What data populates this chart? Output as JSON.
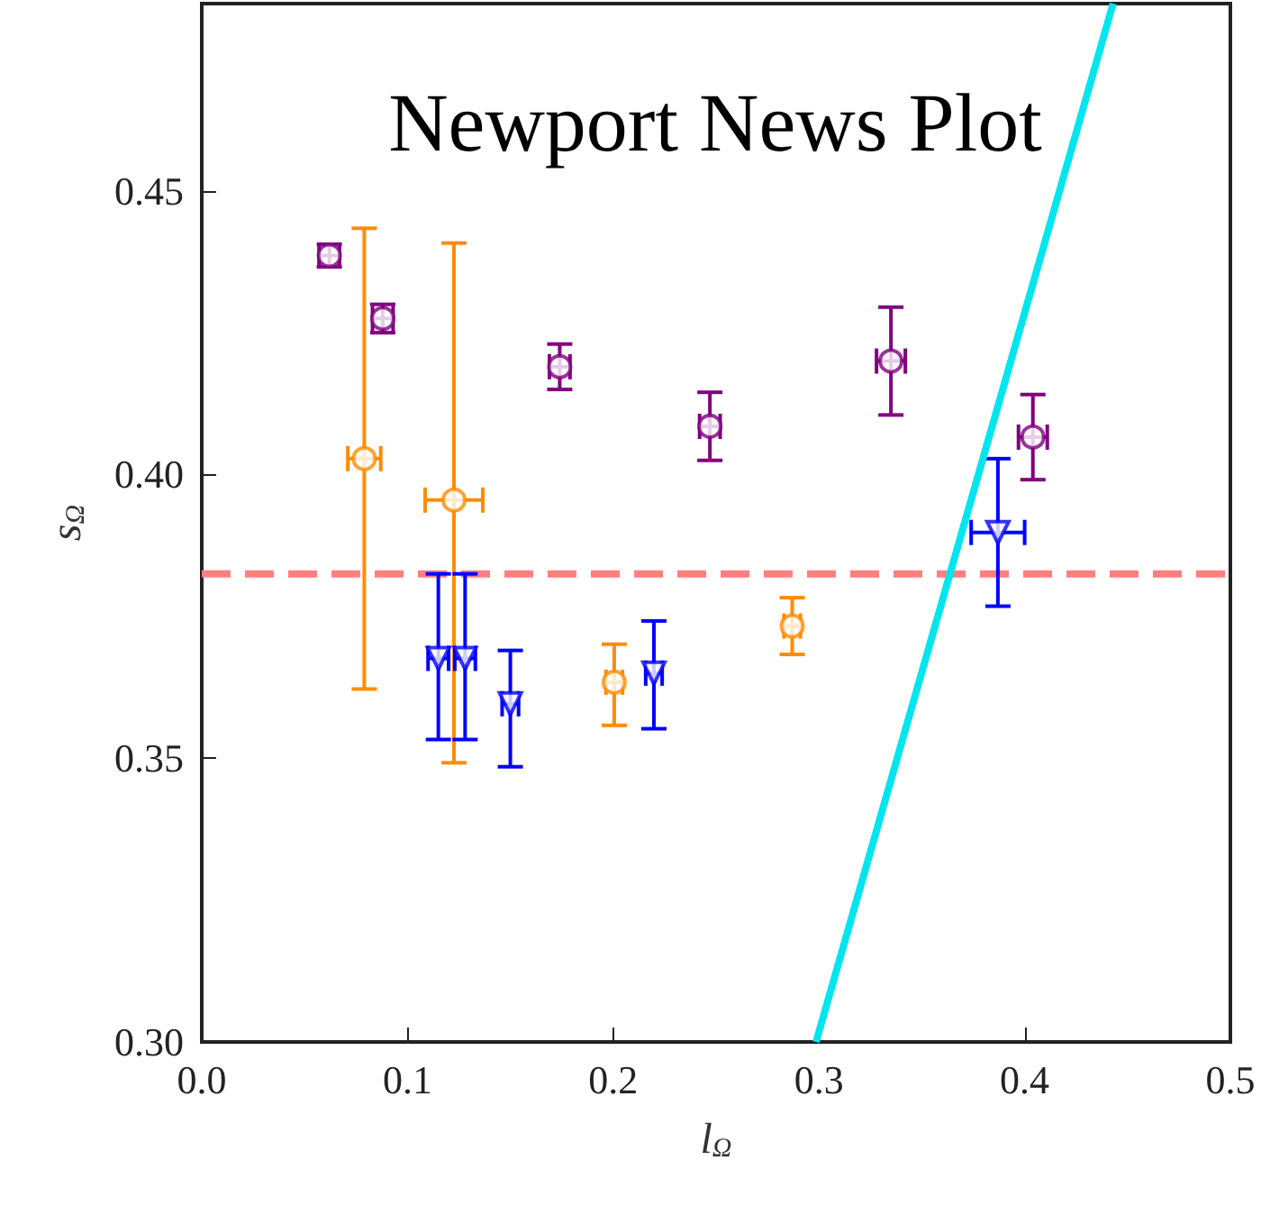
{
  "chart_data": {
    "type": "scatter",
    "title": "Newport News Plot",
    "xlabel": "l$_{Ω}$",
    "ylabel": "s$_{Ω}$",
    "xlim": [
      0,
      0.5
    ],
    "ylim": [
      0.3,
      0.483
    ],
    "xticks": [
      {
        "value": 0,
        "label": "0.0"
      },
      {
        "value": 0.1,
        "label": "0.1"
      },
      {
        "value": 0.2,
        "label": "0.2"
      },
      {
        "value": 0.3,
        "label": "0.3"
      },
      {
        "value": 0.4,
        "label": "0.4"
      },
      {
        "value": 0.5,
        "label": "0.5"
      }
    ],
    "yticks": [
      {
        "value": 0.3,
        "label": "0.30"
      },
      {
        "value": 0.35,
        "label": "0.35"
      },
      {
        "value": 0.4,
        "label": "0.40"
      },
      {
        "value": 0.45,
        "label": "0.45"
      }
    ],
    "series": [
      {
        "color": "#800080",
        "marker": "circle",
        "x": [
          0.062,
          0.088,
          0.174,
          0.247,
          0.335,
          0.404
        ],
        "values": [
          0.4386,
          0.4275,
          0.419,
          0.4085,
          0.42,
          0.4066
        ],
        "errors": [
          0.002,
          0.0025,
          0.004,
          0.006,
          0.0095,
          0.0075
        ],
        "xerrors": [
          0.005,
          0.005,
          0.005,
          0.005,
          0.007,
          0.007
        ]
      },
      {
        "color": "#ff8c00",
        "marker": "circle",
        "x": [
          0.079,
          0.1226,
          0.2005,
          0.287
        ],
        "values": [
          0.4028,
          0.3955,
          0.3634,
          0.3733
        ],
        "errors": [
          [
            0.3622,
            0.4434
          ],
          [
            0.3492,
            0.4408
          ],
          [
            0.3558,
            0.3701
          ],
          0.005
        ],
        "xerrors": [
          0.008,
          0.014,
          0.004,
          0.004
        ]
      },
      {
        "color": "#0000ff",
        "marker": "triangle",
        "x": [
          0.115,
          0.128,
          0.15,
          0.2198,
          0.387
        ],
        "values": [
          0.3676,
          0.3676,
          0.3596,
          0.365,
          0.3898
        ],
        "errors": [
          [
            0.3533,
            0.3825
          ],
          [
            0.3533,
            0.3825
          ],
          [
            0.3485,
            0.369
          ],
          [
            0.3552,
            0.3742
          ],
          [
            0.3768,
            0.4028
          ]
        ],
        "xerrors": [
          0.005,
          0.005,
          0.004,
          0.004,
          0.013
        ]
      },
      {
        "type": "line",
        "color": "#00e5ee",
        "marker": "none",
        "line_style": "solid",
        "x": [
          0.2986,
          0.443
        ],
        "values": [
          0.3,
          0.483
        ]
      }
    ],
    "ref_lines": [
      {
        "axis": "y",
        "value": 0.3825,
        "color": "#ff7f7f",
        "line_style": "dashed"
      }
    ]
  }
}
